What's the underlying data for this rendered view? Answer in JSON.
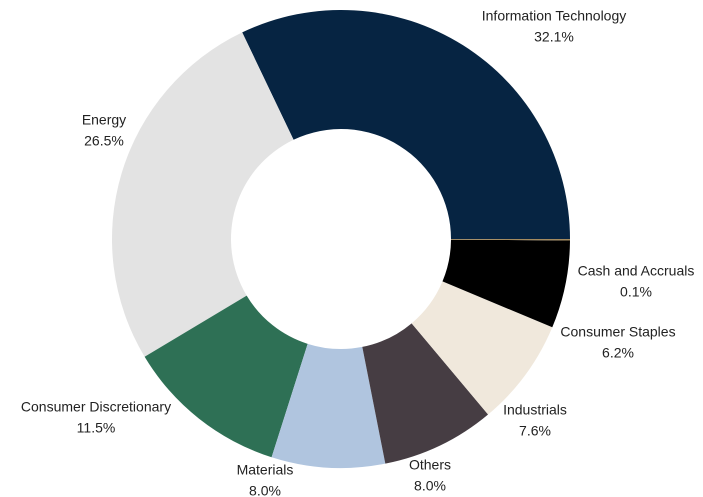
{
  "chart_data": {
    "type": "donut",
    "categories": [
      "Information Technology",
      "Energy",
      "Consumer Discretionary",
      "Materials",
      "Others",
      "Industrials",
      "Consumer Staples",
      "Cash and Accruals"
    ],
    "values": [
      32.1,
      26.5,
      11.5,
      8.0,
      8.0,
      7.6,
      6.2,
      0.1
    ],
    "value_labels": [
      "32.1%",
      "26.5%",
      "11.5%",
      "8.0%",
      "8.0%",
      "7.6%",
      "6.2%",
      "0.1%"
    ],
    "colors": [
      "#062442",
      "#e3e3e3",
      "#2e7055",
      "#b0c5df",
      "#463d43",
      "#f0e8dc",
      "#000000",
      "#a48b5f"
    ]
  }
}
